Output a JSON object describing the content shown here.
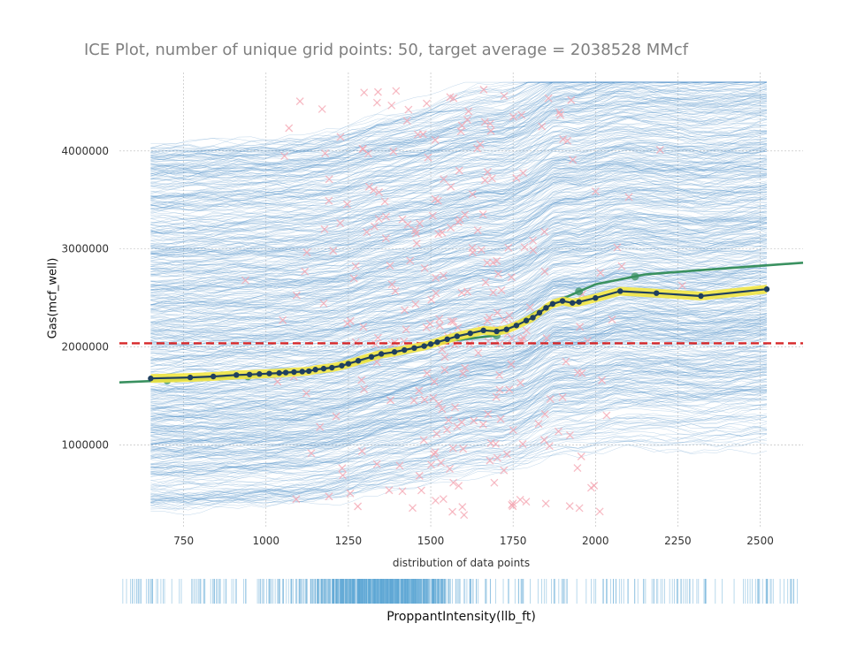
{
  "chart_data": [
    {
      "type": "line",
      "title": "ICE Plot, number of unique grid points: 50, target average = 2038528 MMcf",
      "ylabel": "Gas(mcf_well)",
      "xlabel": "distribution of data points",
      "xlim": [
        555,
        2630
      ],
      "ylim": [
        150000,
        4800000
      ],
      "x_ticks": [
        "750",
        "1000",
        "1250",
        "1500",
        "1750",
        "2000",
        "2250",
        "2500"
      ],
      "y_ticks": [
        "1000000",
        "2000000",
        "3000000",
        "4000000"
      ],
      "grid": true,
      "target_average": 2038528,
      "series": [
        {
          "role": "pdp-average",
          "x": [
            650,
            770,
            840,
            910,
            950,
            980,
            1010,
            1040,
            1060,
            1085,
            1110,
            1130,
            1150,
            1175,
            1200,
            1230,
            1250,
            1280,
            1320,
            1350,
            1390,
            1420,
            1450,
            1480,
            1500,
            1520,
            1550,
            1580,
            1620,
            1660,
            1700,
            1730,
            1760,
            1790,
            1810,
            1830,
            1850,
            1870,
            1900,
            1930,
            1950,
            2000,
            2075,
            2185,
            2320,
            2520
          ],
          "y": [
            1680000,
            1690000,
            1700000,
            1715000,
            1720000,
            1725000,
            1730000,
            1735000,
            1740000,
            1745000,
            1750000,
            1755000,
            1770000,
            1780000,
            1790000,
            1810000,
            1830000,
            1860000,
            1900000,
            1930000,
            1950000,
            1970000,
            1990000,
            2010000,
            2030000,
            2050000,
            2080000,
            2110000,
            2140000,
            2170000,
            2160000,
            2180000,
            2220000,
            2270000,
            2300000,
            2350000,
            2400000,
            2440000,
            2470000,
            2450000,
            2460000,
            2500000,
            2570000,
            2550000,
            2520000,
            2590000
          ],
          "color": "#1f3f5f",
          "band_color": "#f2e642"
        },
        {
          "role": "fitted-trend",
          "x": [
            555,
            700,
            900,
            1100,
            1300,
            1500,
            1700,
            1850,
            2000,
            2150,
            2300,
            2630
          ],
          "y": [
            1640000,
            1660000,
            1690000,
            1740000,
            1860000,
            2040000,
            2120000,
            2420000,
            2640000,
            2740000,
            2780000,
            2860000
          ],
          "color": "#3a9160"
        }
      ],
      "ice_lines": {
        "count": 600,
        "color": "#4f8ec6"
      },
      "scatter": {
        "marker": "x",
        "color": "#f4a6b2",
        "count": 280
      },
      "horizontal_line": {
        "y": 2038528,
        "color": "#d62728",
        "style": "dashed"
      }
    },
    {
      "type": "rug",
      "xlabel": "ProppantIntensity(llb_ft)",
      "xlim": [
        555,
        2630
      ],
      "color": "#5ea8d6",
      "density_peak": 1100
    }
  ]
}
